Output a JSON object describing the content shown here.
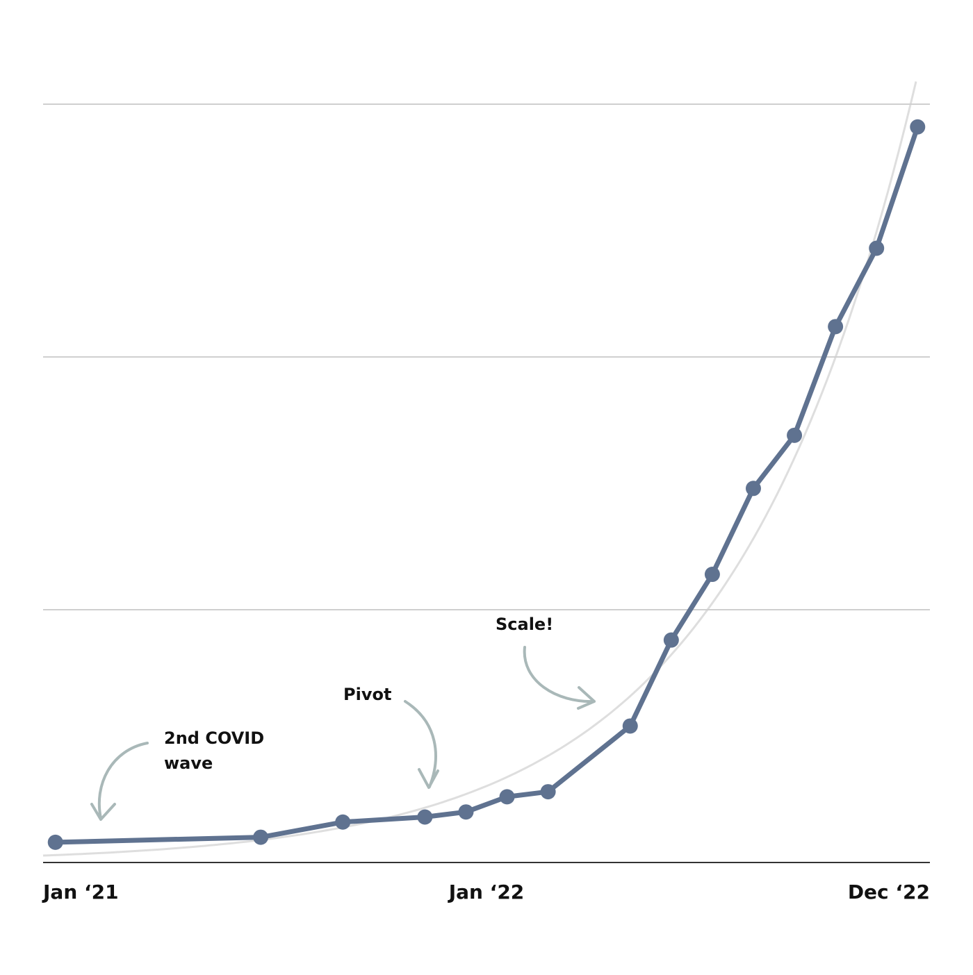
{
  "chart_data": {
    "type": "line",
    "x": [
      0,
      5,
      7,
      9,
      10,
      11,
      12,
      14,
      15,
      16,
      17,
      18,
      19,
      20,
      21
    ],
    "series": [
      {
        "color": "#5f7290",
        "values": [
          0.08,
          0.1,
          0.16,
          0.18,
          0.2,
          0.26,
          0.28,
          0.54,
          0.88,
          1.14,
          1.48,
          1.69,
          2.12,
          2.43,
          2.91
        ]
      }
    ],
    "xlim": [
      -0.3,
      21.3
    ],
    "xticks": [
      {
        "value": -0.3,
        "label": "Jan ‘21"
      },
      {
        "value": 10.5,
        "label": "Jan ‘22"
      },
      {
        "value": 21.3,
        "label": "Dec ‘22"
      }
    ],
    "ylim": [
      0,
      3.1
    ],
    "ygrid": [
      1,
      2,
      3
    ],
    "annotations": [
      {
        "lines": [
          "2nd COVID",
          "wave"
        ]
      },
      {
        "lines": [
          "Pivot"
        ]
      },
      {
        "lines": [
          "Scale!"
        ]
      }
    ]
  }
}
